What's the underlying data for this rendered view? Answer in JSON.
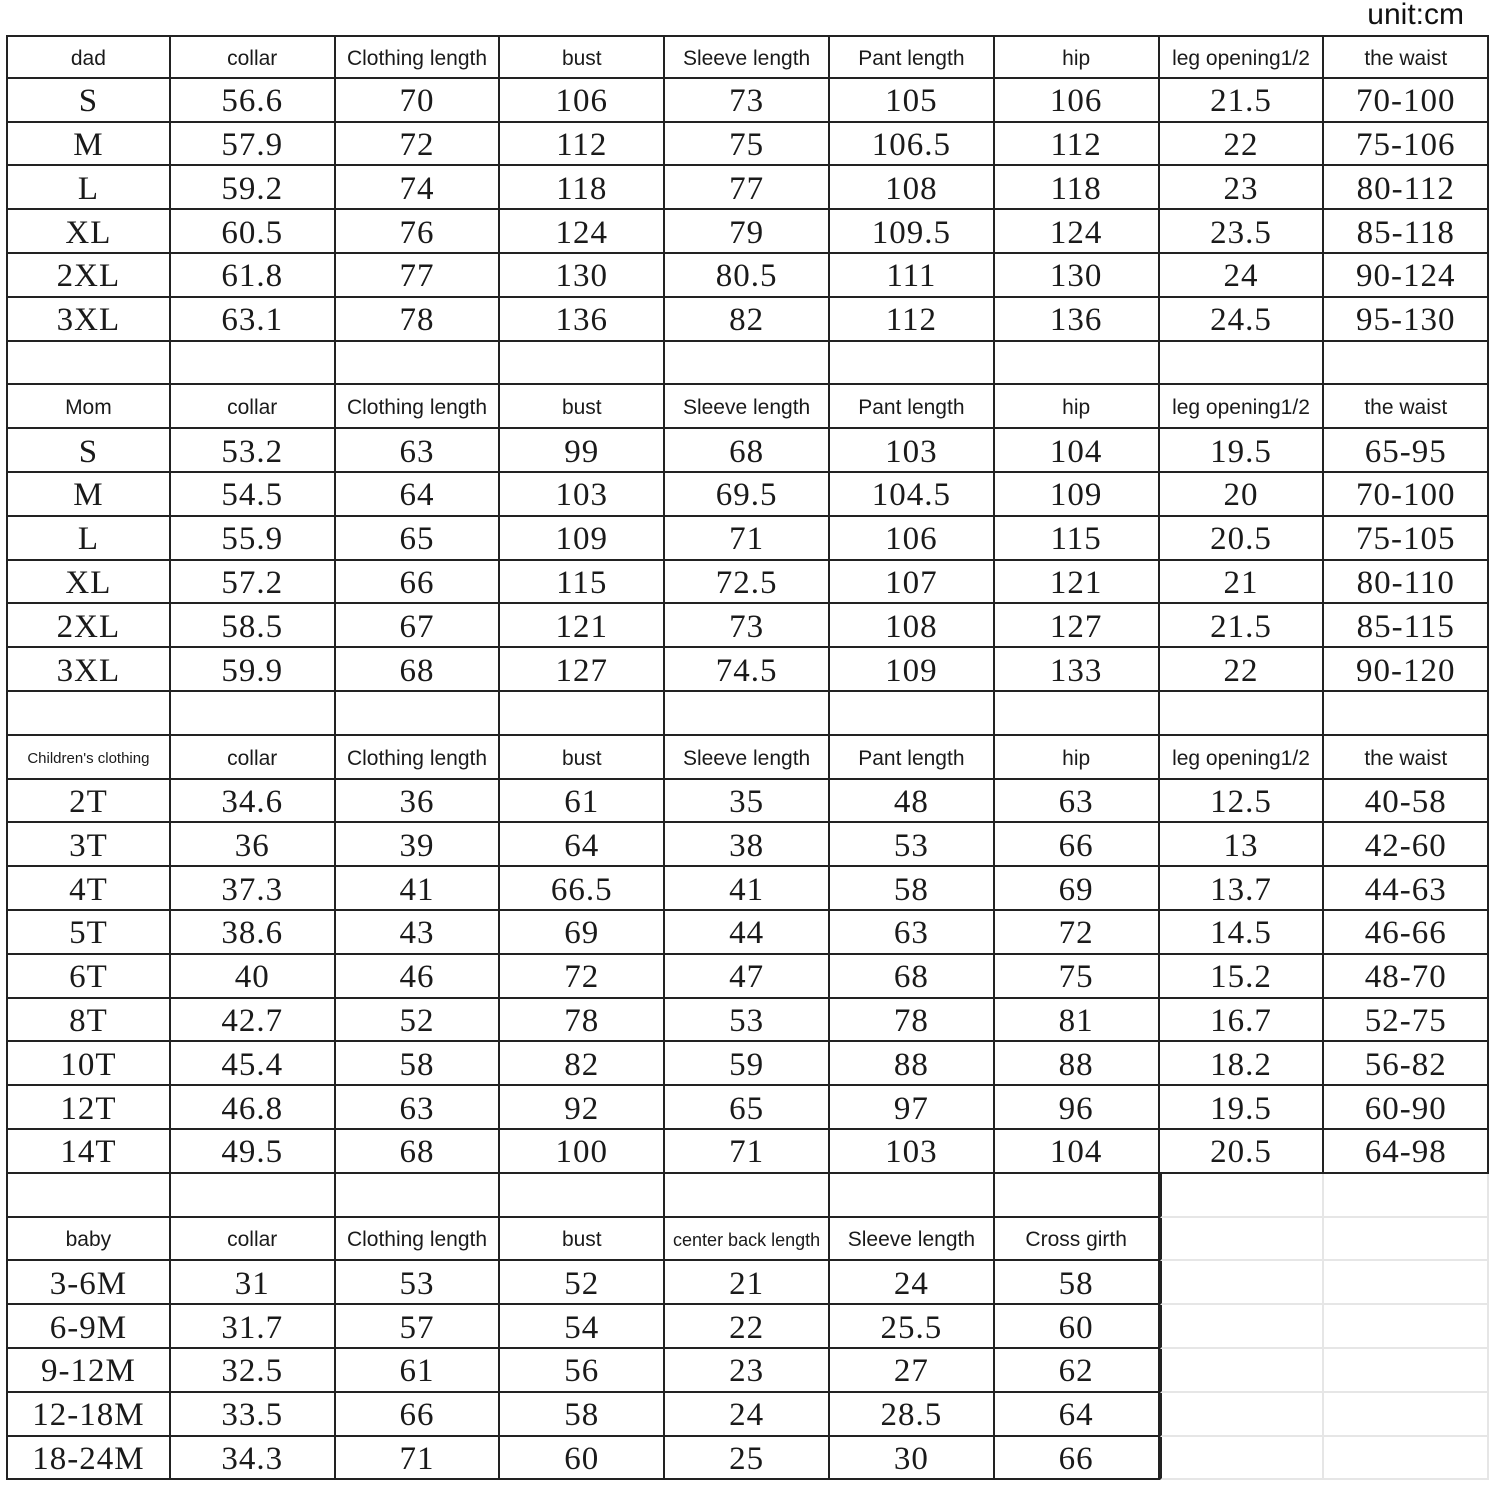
{
  "unit_label": "unit:cm",
  "sections": [
    {
      "header": [
        "dad",
        "collar",
        "Clothing length",
        "bust",
        "Sleeve length",
        "Pant length",
        "hip",
        "leg opening1/2",
        "the waist"
      ],
      "rows": [
        [
          "S",
          "56.6",
          "70",
          "106",
          "73",
          "105",
          "106",
          "21.5",
          "70-100"
        ],
        [
          "M",
          "57.9",
          "72",
          "112",
          "75",
          "106.5",
          "112",
          "22",
          "75-106"
        ],
        [
          "L",
          "59.2",
          "74",
          "118",
          "77",
          "108",
          "118",
          "23",
          "80-112"
        ],
        [
          "XL",
          "60.5",
          "76",
          "124",
          "79",
          "109.5",
          "124",
          "23.5",
          "85-118"
        ],
        [
          "2XL",
          "61.8",
          "77",
          "130",
          "80.5",
          "111",
          "130",
          "24",
          "90-124"
        ],
        [
          "3XL",
          "63.1",
          "78",
          "136",
          "82",
          "112",
          "136",
          "24.5",
          "95-130"
        ]
      ]
    },
    {
      "header": [
        "Mom",
        "collar",
        "Clothing length",
        "bust",
        "Sleeve length",
        "Pant length",
        "hip",
        "leg opening1/2",
        "the waist"
      ],
      "rows": [
        [
          "S",
          "53.2",
          "63",
          "99",
          "68",
          "103",
          "104",
          "19.5",
          "65-95"
        ],
        [
          "M",
          "54.5",
          "64",
          "103",
          "69.5",
          "104.5",
          "109",
          "20",
          "70-100"
        ],
        [
          "L",
          "55.9",
          "65",
          "109",
          "71",
          "106",
          "115",
          "20.5",
          "75-105"
        ],
        [
          "XL",
          "57.2",
          "66",
          "115",
          "72.5",
          "107",
          "121",
          "21",
          "80-110"
        ],
        [
          "2XL",
          "58.5",
          "67",
          "121",
          "73",
          "108",
          "127",
          "21.5",
          "85-115"
        ],
        [
          "3XL",
          "59.9",
          "68",
          "127",
          "74.5",
          "109",
          "133",
          "22",
          "90-120"
        ]
      ]
    },
    {
      "header": [
        "Children's clothing",
        "collar",
        "Clothing length",
        "bust",
        "Sleeve length",
        "Pant length",
        "hip",
        "leg opening1/2",
        "the waist"
      ],
      "rows": [
        [
          "2T",
          "34.6",
          "36",
          "61",
          "35",
          "48",
          "63",
          "12.5",
          "40-58"
        ],
        [
          "3T",
          "36",
          "39",
          "64",
          "38",
          "53",
          "66",
          "13",
          "42-60"
        ],
        [
          "4T",
          "37.3",
          "41",
          "66.5",
          "41",
          "58",
          "69",
          "13.7",
          "44-63"
        ],
        [
          "5T",
          "38.6",
          "43",
          "69",
          "44",
          "63",
          "72",
          "14.5",
          "46-66"
        ],
        [
          "6T",
          "40",
          "46",
          "72",
          "47",
          "68",
          "75",
          "15.2",
          "48-70"
        ],
        [
          "8T",
          "42.7",
          "52",
          "78",
          "53",
          "78",
          "81",
          "16.7",
          "52-75"
        ],
        [
          "10T",
          "45.4",
          "58",
          "82",
          "59",
          "88",
          "88",
          "18.2",
          "56-82"
        ],
        [
          "12T",
          "46.8",
          "63",
          "92",
          "65",
          "97",
          "96",
          "19.5",
          "60-90"
        ],
        [
          "14T",
          "49.5",
          "68",
          "100",
          "71",
          "103",
          "104",
          "20.5",
          "64-98"
        ]
      ]
    },
    {
      "header": [
        "baby",
        "collar",
        "Clothing length",
        "bust",
        "center back length",
        "Sleeve length",
        "Cross girth"
      ],
      "rows": [
        [
          "3-6M",
          "31",
          "53",
          "52",
          "21",
          "24",
          "58"
        ],
        [
          "6-9M",
          "31.7",
          "57",
          "54",
          "22",
          "25.5",
          "60"
        ],
        [
          "9-12M",
          "32.5",
          "61",
          "56",
          "23",
          "27",
          "62"
        ],
        [
          "12-18M",
          "33.5",
          "66",
          "58",
          "24",
          "28.5",
          "64"
        ],
        [
          "18-24M",
          "34.3",
          "71",
          "60",
          "25",
          "30",
          "66"
        ]
      ]
    }
  ]
}
